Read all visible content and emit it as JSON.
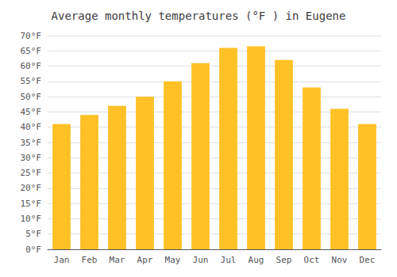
{
  "chart_data": {
    "type": "bar",
    "title": "Average monthly temperatures (°F ) in Eugene",
    "categories": [
      "Jan",
      "Feb",
      "Mar",
      "Apr",
      "May",
      "Jun",
      "Jul",
      "Aug",
      "Sep",
      "Oct",
      "Nov",
      "Dec"
    ],
    "values": [
      41,
      44,
      47,
      50,
      55,
      61,
      66,
      66.5,
      62,
      53,
      46,
      41
    ],
    "color": "#FFC125",
    "ylim": [
      0,
      70
    ],
    "yticks": [
      {
        "value": 0,
        "label": "0°F"
      },
      {
        "value": 5,
        "label": "5°F"
      },
      {
        "value": 10,
        "label": "10°F"
      },
      {
        "value": 15,
        "label": "15°F"
      },
      {
        "value": 20,
        "label": "20°F"
      },
      {
        "value": 25,
        "label": "25°F"
      },
      {
        "value": 30,
        "label": "30°F"
      },
      {
        "value": 35,
        "label": "35°F"
      },
      {
        "value": 40,
        "label": "40°F"
      },
      {
        "value": 45,
        "label": "45°F"
      },
      {
        "value": 50,
        "label": "50°F"
      },
      {
        "value": 55,
        "label": "55°F"
      },
      {
        "value": 60,
        "label": "60°F"
      },
      {
        "value": 65,
        "label": "65°F"
      },
      {
        "value": 70,
        "label": "70°F"
      }
    ],
    "grid": true
  }
}
